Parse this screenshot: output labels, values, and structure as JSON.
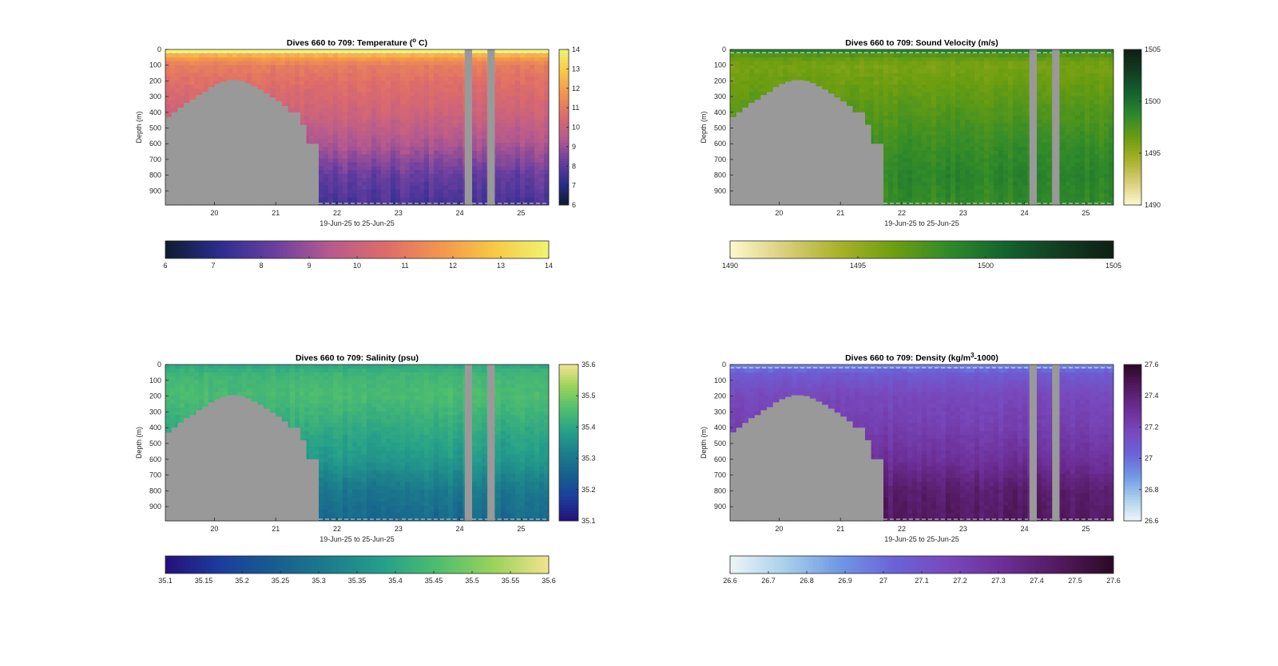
{
  "figure": {
    "background": "#ffffff"
  },
  "chart_data": [
    {
      "type": "heatmap",
      "title": "Dives 660 to 709: Temperature (° C)",
      "title_main": "Dives 660 to 709: Temperature (",
      "title_sup": "o",
      "title_tail": " C)",
      "xlabel": "19-Jun-25 to 25-Jun-25",
      "ylabel": "Depth (m)",
      "x_ticks": [
        "20",
        "21",
        "22",
        "23",
        "24",
        "25"
      ],
      "x_tick_values": [
        20,
        21,
        22,
        23,
        24,
        25
      ],
      "xlim": [
        19.2,
        25.45
      ],
      "y_ticks": [
        "0",
        "100",
        "200",
        "300",
        "400",
        "500",
        "600",
        "700",
        "800",
        "900"
      ],
      "ylim": [
        0,
        990
      ],
      "colorbar_ticks": [
        "6",
        "7",
        "8",
        "9",
        "10",
        "11",
        "12",
        "13",
        "14"
      ],
      "clim": [
        6,
        14
      ],
      "colormap": [
        "#0d1b2e",
        "#2d2d90",
        "#6a3fa0",
        "#b65a8e",
        "#dd6b6a",
        "#f3944f",
        "#f7c844",
        "#eef573"
      ],
      "profile": {
        "depths": [
          0,
          50,
          100,
          200,
          400,
          600,
          800,
          990
        ],
        "values": [
          13.4,
          12.0,
          11.1,
          10.7,
          10.1,
          9.3,
          8.2,
          7.6
        ]
      },
      "no_data_color": "#999999",
      "bathymetry": {
        "x": [
          19.2,
          19.3,
          19.4,
          19.5,
          19.6,
          19.7,
          19.8,
          19.9,
          20.0,
          20.1,
          20.2,
          20.3,
          20.4,
          20.5,
          20.6,
          20.7,
          20.8,
          20.9,
          21.0,
          21.1,
          21.2,
          21.3,
          21.4,
          21.5,
          21.6,
          21.7
        ],
        "depth": [
          430,
          400,
          370,
          340,
          320,
          290,
          270,
          240,
          220,
          205,
          195,
          195,
          200,
          215,
          235,
          255,
          280,
          305,
          330,
          360,
          400,
          400,
          480,
          600,
          600,
          990
        ]
      },
      "gaps": [
        [
          24.08,
          24.2
        ],
        [
          24.45,
          24.57
        ]
      ],
      "surface_band": true
    },
    {
      "type": "heatmap",
      "title": "Dives 660 to 709: Sound Velocity (m/s)",
      "title_main": "Dives 660 to 709: Sound Velocity (m/s)",
      "title_sup": "",
      "title_tail": "",
      "xlabel": "19-Jun-25 to 25-Jun-25",
      "ylabel": "Depth (m)",
      "x_ticks": [
        "20",
        "21",
        "22",
        "23",
        "24",
        "25"
      ],
      "x_tick_values": [
        20,
        21,
        22,
        23,
        24,
        25
      ],
      "xlim": [
        19.2,
        25.45
      ],
      "y_ticks": [
        "0",
        "100",
        "200",
        "300",
        "400",
        "500",
        "600",
        "700",
        "800",
        "900"
      ],
      "ylim": [
        0,
        990
      ],
      "colorbar_ticks": [
        "1490",
        "1495",
        "1500",
        "1505"
      ],
      "clim": [
        1490,
        1505
      ],
      "colormap": [
        "#fdf8d0",
        "#d9cf7a",
        "#a9b12a",
        "#6d9e10",
        "#2f8a2a",
        "#14642f",
        "#123d22",
        "#0e1e14"
      ],
      "profile": {
        "depths": [
          0,
          50,
          100,
          200,
          400,
          600,
          800,
          990
        ],
        "values": [
          1498.5,
          1496.8,
          1496.0,
          1496.4,
          1497.3,
          1498.2,
          1498.8,
          1498.4
        ]
      },
      "no_data_color": "#999999",
      "bathymetry": {
        "x": [
          19.2,
          19.3,
          19.4,
          19.5,
          19.6,
          19.7,
          19.8,
          19.9,
          20.0,
          20.1,
          20.2,
          20.3,
          20.4,
          20.5,
          20.6,
          20.7,
          20.8,
          20.9,
          21.0,
          21.1,
          21.2,
          21.3,
          21.4,
          21.5,
          21.6,
          21.7
        ],
        "depth": [
          430,
          400,
          370,
          340,
          320,
          290,
          270,
          240,
          220,
          205,
          195,
          195,
          200,
          215,
          235,
          255,
          280,
          305,
          330,
          360,
          400,
          400,
          480,
          600,
          600,
          990
        ]
      },
      "gaps": [
        [
          24.08,
          24.2
        ],
        [
          24.45,
          24.57
        ]
      ],
      "surface_band": true
    },
    {
      "type": "heatmap",
      "title": "Dives 660 to 709: Salinity (psu)",
      "title_main": "Dives 660 to 709: Salinity (psu)",
      "title_sup": "",
      "title_tail": "",
      "xlabel": "19-Jun-25 to 25-Jun-25",
      "ylabel": "Depth (m)",
      "x_ticks": [
        "20",
        "21",
        "22",
        "23",
        "24",
        "25"
      ],
      "x_tick_values": [
        20,
        21,
        22,
        23,
        24,
        25
      ],
      "xlim": [
        19.2,
        25.45
      ],
      "y_ticks": [
        "0",
        "100",
        "200",
        "300",
        "400",
        "500",
        "600",
        "700",
        "800",
        "900"
      ],
      "ylim": [
        0,
        990
      ],
      "colorbar_ticks": [
        "35.6",
        "35.5",
        "35.4",
        "35.3",
        "35.2",
        "35.1"
      ],
      "colorbar_h_ticks": [
        "35.1",
        "35.15",
        "35.2",
        "35.25",
        "35.3",
        "35.35",
        "35.4",
        "35.45",
        "35.5",
        "35.55",
        "35.6"
      ],
      "clim": [
        35.1,
        35.6
      ],
      "colormap": [
        "#25107a",
        "#1c3c9c",
        "#175e8f",
        "#1c7d8c",
        "#26a08a",
        "#4fbe6e",
        "#9ad35a",
        "#f2e38f"
      ],
      "profile": {
        "depths": [
          0,
          50,
          100,
          200,
          400,
          600,
          800,
          990
        ],
        "values": [
          35.4,
          35.43,
          35.44,
          35.45,
          35.41,
          35.37,
          35.3,
          35.27
        ]
      },
      "no_data_color": "#999999",
      "bathymetry": {
        "x": [
          19.2,
          19.3,
          19.4,
          19.5,
          19.6,
          19.7,
          19.8,
          19.9,
          20.0,
          20.1,
          20.2,
          20.3,
          20.4,
          20.5,
          20.6,
          20.7,
          20.8,
          20.9,
          21.0,
          21.1,
          21.2,
          21.3,
          21.4,
          21.5,
          21.6,
          21.7
        ],
        "depth": [
          430,
          400,
          370,
          340,
          320,
          290,
          270,
          240,
          220,
          205,
          195,
          195,
          200,
          215,
          235,
          255,
          280,
          305,
          330,
          360,
          400,
          400,
          480,
          600,
          600,
          990
        ]
      },
      "gaps": [
        [
          24.08,
          24.2
        ],
        [
          24.45,
          24.57
        ]
      ],
      "surface_band": false
    },
    {
      "type": "heatmap",
      "title": "Dives 660 to 709: Density (kg/m³-1000)",
      "title_main": "Dives 660 to 709: Density (kg/m",
      "title_sup": "3",
      "title_tail": "-1000)",
      "xlabel": "19-Jun-25 to 25-Jun-25",
      "ylabel": "Depth (m)",
      "x_ticks": [
        "20",
        "21",
        "22",
        "23",
        "24",
        "25"
      ],
      "x_tick_values": [
        20,
        21,
        22,
        23,
        24,
        25
      ],
      "xlim": [
        19.2,
        25.45
      ],
      "y_ticks": [
        "0",
        "100",
        "200",
        "300",
        "400",
        "500",
        "600",
        "700",
        "800",
        "900"
      ],
      "ylim": [
        0,
        990
      ],
      "colorbar_ticks": [
        "27.6",
        "27.4",
        "27.2",
        "27",
        "26.8",
        "26.6"
      ],
      "colorbar_h_ticks": [
        "26.6",
        "26.7",
        "26.8",
        "26.9",
        "27",
        "27.1",
        "27.2",
        "27.3",
        "27.4",
        "27.5",
        "27.6"
      ],
      "clim": [
        26.6,
        27.6
      ],
      "colormap": [
        "#eef5f6",
        "#a8d0ec",
        "#6f98e4",
        "#6b62d8",
        "#7848bc",
        "#6c2e96",
        "#52195f",
        "#2c0a25"
      ],
      "profile": {
        "depths": [
          0,
          50,
          100,
          200,
          400,
          600,
          800,
          990
        ],
        "values": [
          26.9,
          27.06,
          27.1,
          27.17,
          27.22,
          27.3,
          27.42,
          27.45
        ]
      },
      "no_data_color": "#999999",
      "bathymetry": {
        "x": [
          19.2,
          19.3,
          19.4,
          19.5,
          19.6,
          19.7,
          19.8,
          19.9,
          20.0,
          20.1,
          20.2,
          20.3,
          20.4,
          20.5,
          20.6,
          20.7,
          20.8,
          20.9,
          21.0,
          21.1,
          21.2,
          21.3,
          21.4,
          21.5,
          21.6,
          21.7
        ],
        "depth": [
          430,
          400,
          370,
          340,
          320,
          290,
          270,
          240,
          220,
          205,
          195,
          195,
          200,
          215,
          235,
          255,
          280,
          305,
          330,
          360,
          400,
          400,
          480,
          600,
          600,
          990
        ]
      },
      "gaps": [
        [
          24.08,
          24.2
        ],
        [
          24.45,
          24.57
        ]
      ],
      "surface_band": true
    }
  ]
}
